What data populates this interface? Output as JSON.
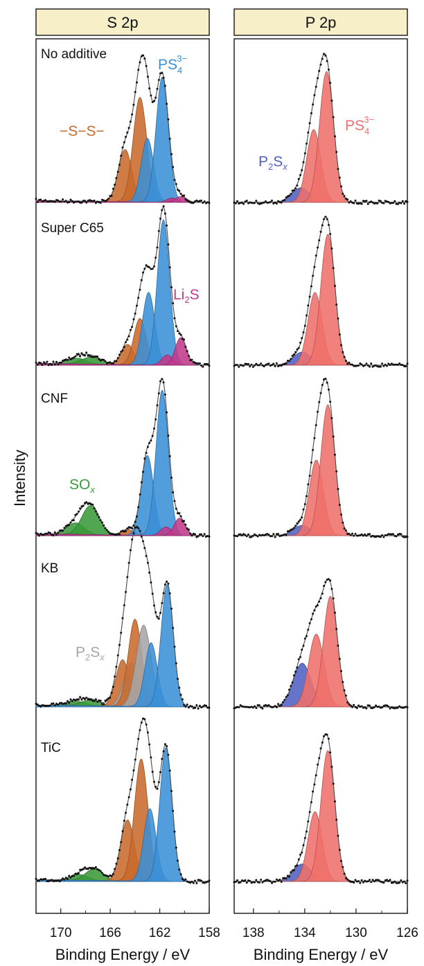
{
  "chart_data": [
    {
      "type": "area",
      "title": "S 2p",
      "xlabel": "Binding Energy / eV",
      "ylabel": "Intensity",
      "xlim": [
        172,
        158
      ],
      "x_reversed": true,
      "xticks": [
        "170",
        "166",
        "162",
        "158"
      ],
      "grid": false,
      "colors": {
        "bridging_S": "#c96a2c",
        "PS4": "#3a8fd6",
        "Li2S": "#c0398a",
        "SOx": "#3a9a3a",
        "P2Sx_grey": "#a6a6a6"
      },
      "annotations": {
        "bridging_S": "−S−S−",
        "PS4": {
          "base": "PS",
          "sub": "4",
          "sup": "3−"
        },
        "Li2S": {
          "a": "Li",
          "sub": "2",
          "b": "S"
        },
        "SOx": {
          "base": "SO",
          "sub": "x"
        },
        "P2Sx": {
          "a": "P",
          "sub": "2",
          "b": "S",
          "sub2": "x"
        }
      },
      "panels": [
        {
          "label": "No additive",
          "peaks": [
            {
              "component": "bridging_S",
              "center": 164.8,
              "height": 0.36,
              "width": 0.55
            },
            {
              "component": "bridging_S",
              "center": 163.6,
              "height": 0.72,
              "width": 0.55
            },
            {
              "component": "PS4",
              "center": 163.0,
              "height": 0.44,
              "width": 0.5
            },
            {
              "component": "PS4",
              "center": 161.8,
              "height": 0.86,
              "width": 0.5
            },
            {
              "component": "Li2S",
              "center": 161.0,
              "height": 0.03,
              "width": 0.45
            },
            {
              "component": "Li2S",
              "center": 160.3,
              "height": 0.04,
              "width": 0.45
            }
          ]
        },
        {
          "label": "Super C65",
          "peaks": [
            {
              "component": "SOx",
              "center": 168.7,
              "height": 0.04,
              "width": 0.8
            },
            {
              "component": "SOx",
              "center": 167.5,
              "height": 0.05,
              "width": 0.8
            },
            {
              "component": "bridging_S",
              "center": 164.6,
              "height": 0.14,
              "width": 0.5
            },
            {
              "component": "bridging_S",
              "center": 163.6,
              "height": 0.32,
              "width": 0.5
            },
            {
              "component": "PS4",
              "center": 162.9,
              "height": 0.5,
              "width": 0.5
            },
            {
              "component": "PS4",
              "center": 161.7,
              "height": 1.0,
              "width": 0.5
            },
            {
              "component": "Li2S",
              "center": 161.4,
              "height": 0.07,
              "width": 0.45
            },
            {
              "component": "Li2S",
              "center": 160.3,
              "height": 0.19,
              "width": 0.45
            }
          ]
        },
        {
          "label": "CNF",
          "peaks": [
            {
              "component": "SOx",
              "center": 168.8,
              "height": 0.08,
              "width": 0.7
            },
            {
              "component": "SOx",
              "center": 167.6,
              "height": 0.2,
              "width": 0.7
            },
            {
              "component": "bridging_S",
              "center": 164.6,
              "height": 0.04,
              "width": 0.5
            },
            {
              "component": "PS4",
              "center": 163.0,
              "height": 0.55,
              "width": 0.5
            },
            {
              "component": "PS4",
              "center": 161.8,
              "height": 1.0,
              "width": 0.5
            },
            {
              "component": "Li2S",
              "center": 161.5,
              "height": 0.06,
              "width": 0.45
            },
            {
              "component": "Li2S",
              "center": 160.4,
              "height": 0.12,
              "width": 0.45
            }
          ]
        },
        {
          "label": "KB",
          "peaks": [
            {
              "component": "SOx",
              "center": 168.8,
              "height": 0.03,
              "width": 0.8
            },
            {
              "component": "SOx",
              "center": 167.6,
              "height": 0.04,
              "width": 0.8
            },
            {
              "component": "bridging_S",
              "center": 165.0,
              "height": 0.32,
              "width": 0.55
            },
            {
              "component": "P2Sx_grey",
              "center": 164.3,
              "height": 0.3,
              "width": 0.6
            },
            {
              "component": "bridging_S",
              "center": 164.0,
              "height": 0.6,
              "width": 0.55
            },
            {
              "component": "P2Sx_grey",
              "center": 163.3,
              "height": 0.56,
              "width": 0.6
            },
            {
              "component": "PS4",
              "center": 162.7,
              "height": 0.44,
              "width": 0.5
            },
            {
              "component": "PS4",
              "center": 161.4,
              "height": 0.84,
              "width": 0.5
            }
          ]
        },
        {
          "label": "TiC",
          "peaks": [
            {
              "component": "SOx",
              "center": 168.5,
              "height": 0.04,
              "width": 0.7
            },
            {
              "component": "SOx",
              "center": 167.3,
              "height": 0.08,
              "width": 0.7
            },
            {
              "component": "bridging_S",
              "center": 164.6,
              "height": 0.42,
              "width": 0.55
            },
            {
              "component": "bridging_S",
              "center": 163.5,
              "height": 0.84,
              "width": 0.55
            },
            {
              "component": "PS4",
              "center": 162.8,
              "height": 0.5,
              "width": 0.5
            },
            {
              "component": "PS4",
              "center": 161.5,
              "height": 0.92,
              "width": 0.5
            }
          ]
        }
      ]
    },
    {
      "type": "area",
      "title": "P 2p",
      "xlabel": "Binding Energy / eV",
      "xlim": [
        139.5,
        126
      ],
      "x_reversed": true,
      "xticks": [
        "138",
        "134",
        "130",
        "126"
      ],
      "grid": false,
      "colors": {
        "PS4": "#ef6f6a",
        "P2Sx": "#5060c0"
      },
      "annotations": {
        "PS4": {
          "base": "PS",
          "sub": "4",
          "sup": "3−"
        },
        "P2Sx": {
          "a": "P",
          "sub": "2",
          "b": "S",
          "sub2": "x"
        }
      },
      "panels": [
        {
          "label": "No additive",
          "peaks": [
            {
              "component": "P2Sx",
              "center": 134.3,
              "height": 0.1,
              "width": 0.7
            },
            {
              "component": "PS4",
              "center": 133.3,
              "height": 0.5,
              "width": 0.55
            },
            {
              "component": "PS4",
              "center": 132.3,
              "height": 0.9,
              "width": 0.55
            }
          ]
        },
        {
          "label": "Super C65",
          "peaks": [
            {
              "component": "P2Sx",
              "center": 134.2,
              "height": 0.09,
              "width": 0.7
            },
            {
              "component": "PS4",
              "center": 133.2,
              "height": 0.5,
              "width": 0.55
            },
            {
              "component": "PS4",
              "center": 132.2,
              "height": 0.9,
              "width": 0.55
            }
          ]
        },
        {
          "label": "CNF",
          "peaks": [
            {
              "component": "P2Sx",
              "center": 134.2,
              "height": 0.07,
              "width": 0.7
            },
            {
              "component": "PS4",
              "center": 133.1,
              "height": 0.52,
              "width": 0.55
            },
            {
              "component": "PS4",
              "center": 132.2,
              "height": 0.9,
              "width": 0.55
            }
          ]
        },
        {
          "label": "KB",
          "peaks": [
            {
              "component": "P2Sx",
              "center": 134.2,
              "height": 0.3,
              "width": 0.7
            },
            {
              "component": "PS4",
              "center": 133.1,
              "height": 0.5,
              "width": 0.6
            },
            {
              "component": "PS4",
              "center": 132.0,
              "height": 0.76,
              "width": 0.55
            }
          ]
        },
        {
          "label": "TiC",
          "peaks": [
            {
              "component": "P2Sx",
              "center": 134.2,
              "height": 0.12,
              "width": 0.7
            },
            {
              "component": "PS4",
              "center": 133.2,
              "height": 0.48,
              "width": 0.55
            },
            {
              "component": "PS4",
              "center": 132.2,
              "height": 0.9,
              "width": 0.55
            }
          ]
        }
      ]
    }
  ]
}
